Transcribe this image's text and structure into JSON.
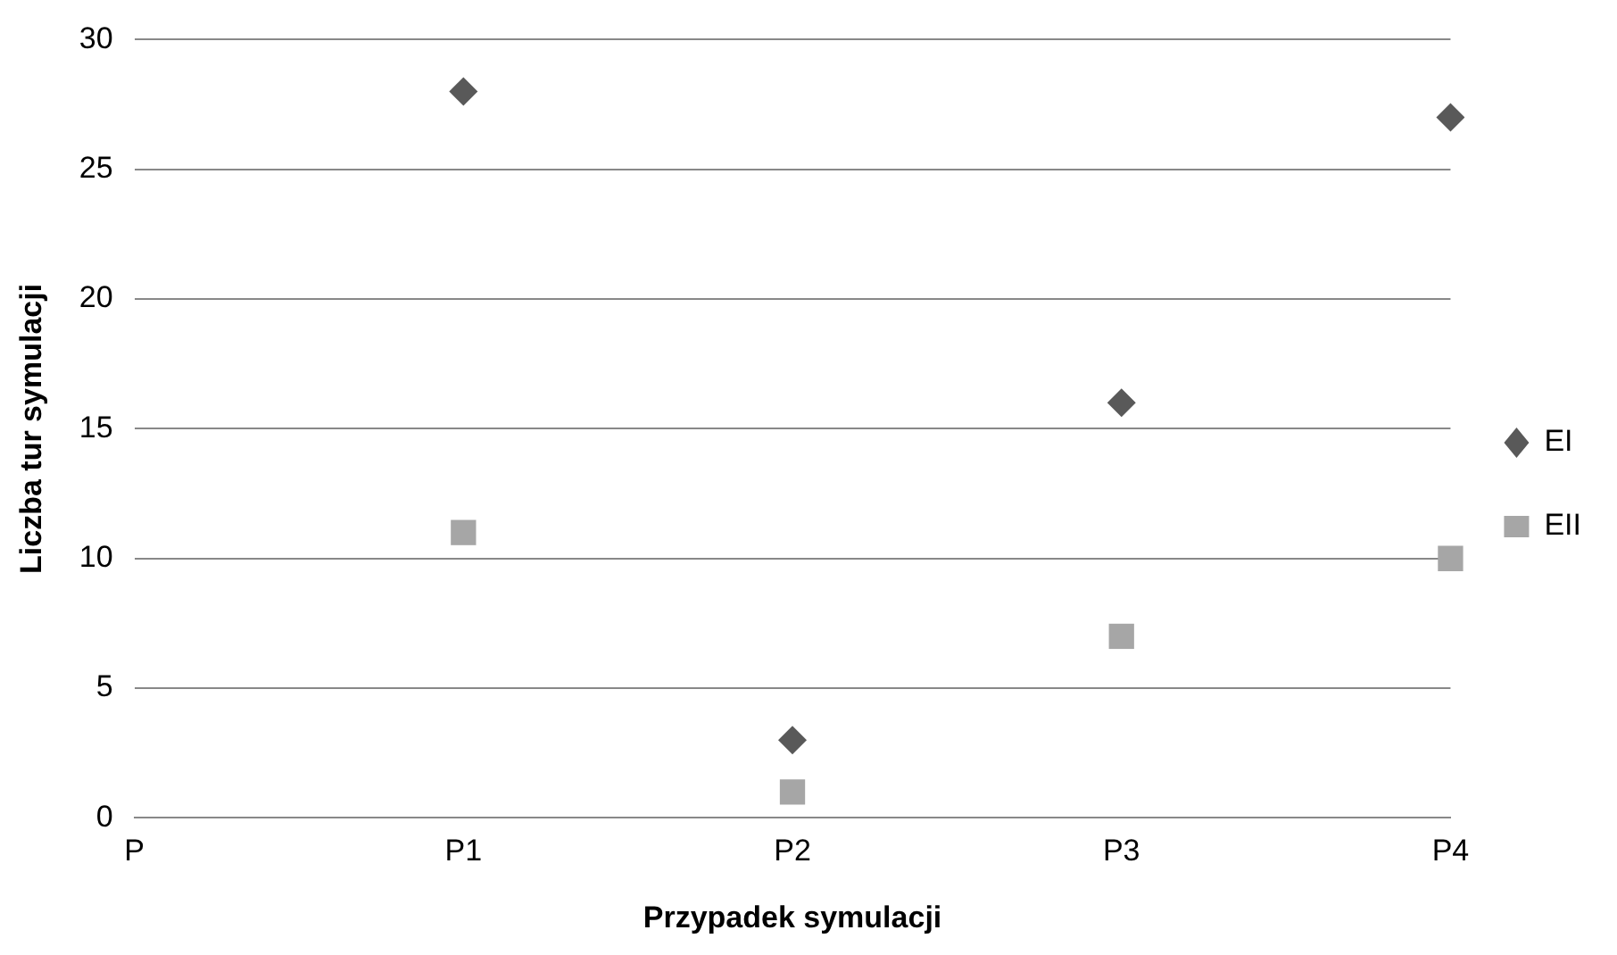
{
  "chart_data": {
    "type": "scatter",
    "xlabel": "Przypadek symulacji",
    "ylabel": "Liczba tur symulacji",
    "categories": [
      "P",
      "P1",
      "P2",
      "P3",
      "P4"
    ],
    "series": [
      {
        "name": "EI",
        "color": "#595959",
        "marker": "diamond",
        "values": [
          null,
          28,
          3,
          16,
          27
        ]
      },
      {
        "name": "EII",
        "color": "#a6a6a6",
        "marker": "square",
        "values": [
          null,
          11,
          1,
          7,
          10
        ]
      }
    ],
    "ylim": [
      0,
      30
    ],
    "yticks": [
      0,
      5,
      10,
      15,
      20,
      25,
      30
    ],
    "grid": "y",
    "legend": "right"
  }
}
